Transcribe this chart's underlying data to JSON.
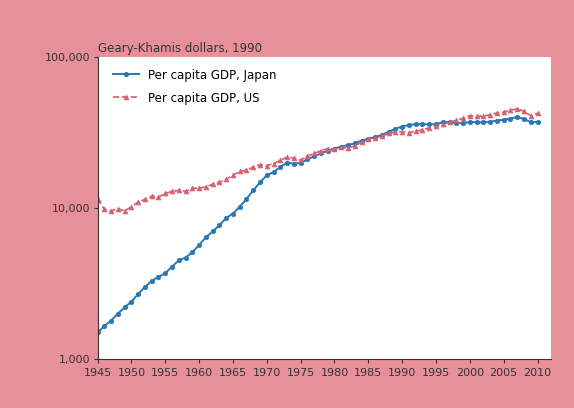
{
  "title": "Geary-Khamis dollars, 1990",
  "background_color": "#e8909a",
  "plot_bg_color": "#ffffff",
  "japan_color": "#2878b4",
  "us_color": "#d46070",
  "japan_label": "Per capita GDP, Japan",
  "us_label": "Per capita GDP, US",
  "xlim": [
    1945,
    2012
  ],
  "ylim": [
    1000,
    100000
  ],
  "xticks": [
    1945,
    1950,
    1955,
    1960,
    1965,
    1970,
    1975,
    1980,
    1985,
    1990,
    1995,
    2000,
    2005,
    2010
  ],
  "yticks": [
    1000,
    10000,
    100000
  ],
  "ytick_labels": [
    "1,000",
    "10,000",
    "100,000"
  ],
  "japan_data": {
    "years": [
      1945,
      1946,
      1947,
      1948,
      1949,
      1950,
      1951,
      1952,
      1953,
      1954,
      1955,
      1956,
      1957,
      1958,
      1959,
      1960,
      1961,
      1962,
      1963,
      1964,
      1965,
      1966,
      1967,
      1968,
      1969,
      1970,
      1971,
      1972,
      1973,
      1974,
      1975,
      1976,
      1977,
      1978,
      1979,
      1980,
      1981,
      1982,
      1983,
      1984,
      1985,
      1986,
      1987,
      1988,
      1989,
      1990,
      1991,
      1992,
      1993,
      1994,
      1995,
      1996,
      1997,
      1998,
      1999,
      2000,
      2001,
      2002,
      2003,
      2004,
      2005,
      2006,
      2007,
      2008,
      2009,
      2010
    ],
    "values": [
      1500,
      1650,
      1800,
      2000,
      2200,
      2400,
      2700,
      3000,
      3300,
      3500,
      3700,
      4100,
      4500,
      4700,
      5100,
      5700,
      6400,
      7000,
      7700,
      8600,
      9200,
      10200,
      11500,
      13100,
      14800,
      16500,
      17300,
      18700,
      20000,
      19700,
      19900,
      21000,
      22000,
      23000,
      24000,
      24800,
      25500,
      26200,
      26800,
      28000,
      28700,
      29500,
      30500,
      32000,
      33500,
      34700,
      35500,
      36000,
      36000,
      35800,
      36000,
      37000,
      37200,
      36500,
      36500,
      37200,
      37000,
      37000,
      37300,
      38000,
      38500,
      39200,
      40000,
      39000,
      37000,
      37200
    ]
  },
  "us_data": {
    "years": [
      1945,
      1946,
      1947,
      1948,
      1949,
      1950,
      1951,
      1952,
      1953,
      1954,
      1955,
      1956,
      1957,
      1958,
      1959,
      1960,
      1961,
      1962,
      1963,
      1964,
      1965,
      1966,
      1967,
      1968,
      1969,
      1970,
      1971,
      1972,
      1973,
      1974,
      1975,
      1976,
      1977,
      1978,
      1979,
      1980,
      1981,
      1982,
      1983,
      1984,
      1985,
      1986,
      1987,
      1988,
      1989,
      1990,
      1991,
      1992,
      1993,
      1994,
      1995,
      1996,
      1997,
      1998,
      1999,
      2000,
      2001,
      2002,
      2003,
      2004,
      2005,
      2006,
      2007,
      2008,
      2009,
      2010
    ],
    "values": [
      11500,
      9800,
      9600,
      9900,
      9600,
      10200,
      11000,
      11400,
      12000,
      11800,
      12500,
      12900,
      13100,
      12900,
      13500,
      13600,
      13800,
      14400,
      14800,
      15500,
      16500,
      17500,
      17800,
      18700,
      19400,
      19100,
      19700,
      20700,
      21800,
      21400,
      20800,
      22000,
      23000,
      24000,
      24800,
      24500,
      25200,
      25000,
      25800,
      27300,
      28500,
      29000,
      30000,
      31200,
      32000,
      32100,
      31600,
      32300,
      32900,
      34000,
      34800,
      35800,
      37000,
      38100,
      39300,
      41000,
      40500,
      40800,
      41400,
      42700,
      43200,
      44500,
      45400,
      43800,
      40900,
      42400
    ]
  }
}
